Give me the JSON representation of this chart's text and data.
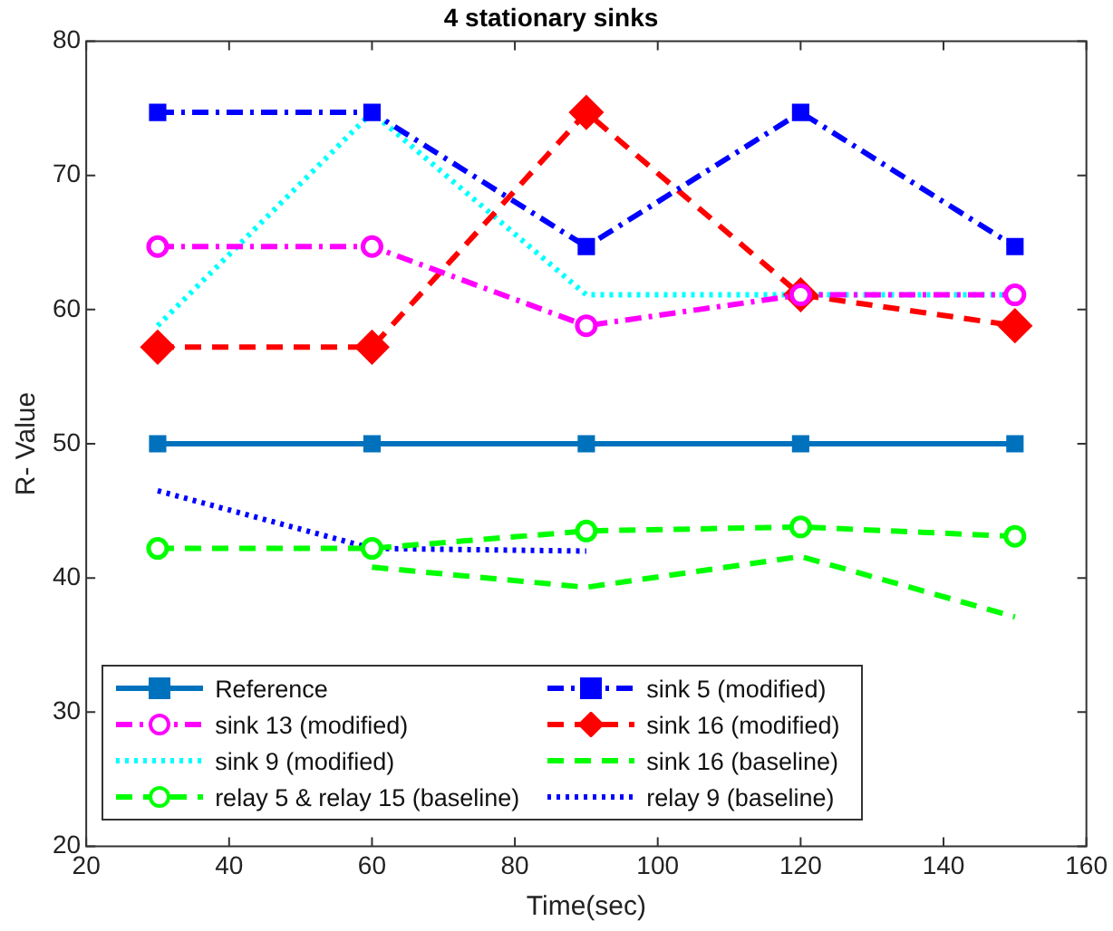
{
  "chart_data": {
    "type": "line",
    "title": "4 stationary sinks",
    "xlabel": "Time(sec)",
    "ylabel": "R- Value",
    "x": [
      30,
      60,
      90,
      120,
      150
    ],
    "xlim": [
      20,
      160
    ],
    "xticks": [
      20,
      40,
      60,
      80,
      100,
      120,
      140,
      160
    ],
    "ylim": [
      20,
      80
    ],
    "yticks": [
      20,
      30,
      40,
      50,
      60,
      70,
      80
    ],
    "grid": false,
    "legend": "bottom left",
    "series": [
      {
        "name": "Reference",
        "color": "#0072bd",
        "values": [
          50,
          50,
          50,
          50,
          50
        ],
        "marker": "square",
        "line_style": "solid"
      },
      {
        "name": "sink 5 (modified)",
        "color": "#0000ff",
        "values": [
          74.7,
          74.7,
          64.7,
          74.7,
          64.7
        ],
        "marker": "square",
        "line_style": "dashdot"
      },
      {
        "name": "sink 13 (modified)",
        "color": "#ff00ff",
        "values": [
          64.7,
          64.7,
          58.8,
          61.1,
          61.1
        ],
        "marker": "circle",
        "line_style": "dashdot"
      },
      {
        "name": "sink 16 (modified)",
        "color": "#ff0000",
        "values": [
          57.2,
          57.2,
          74.7,
          61.1,
          58.8
        ],
        "marker": "diamond",
        "line_style": "dashed"
      },
      {
        "name": "sink 9 (modified)",
        "color": "#00ffff",
        "values": [
          58.8,
          74.7,
          61.1,
          61.1,
          61.1
        ],
        "marker": "none",
        "line_style": "dotted"
      },
      {
        "name": "sink 16 (baseline)",
        "color": "#00ff00",
        "x": [
          60,
          90,
          120,
          150
        ],
        "values": [
          40.8,
          39.3,
          41.6,
          37.1
        ],
        "marker": "none",
        "line_style": "dashed"
      },
      {
        "name": "relay 5 & relay 15 (baseline)",
        "color": "#00ff00",
        "values": [
          42.2,
          42.2,
          43.5,
          43.8,
          43.1
        ],
        "marker": "circle",
        "line_style": "dashed"
      },
      {
        "name": "relay 9 (baseline)",
        "color": "#0000ff",
        "x": [
          30,
          60,
          90
        ],
        "values": [
          46.5,
          42.2,
          42.0
        ],
        "marker": "none",
        "line_style": "dotted"
      }
    ]
  }
}
